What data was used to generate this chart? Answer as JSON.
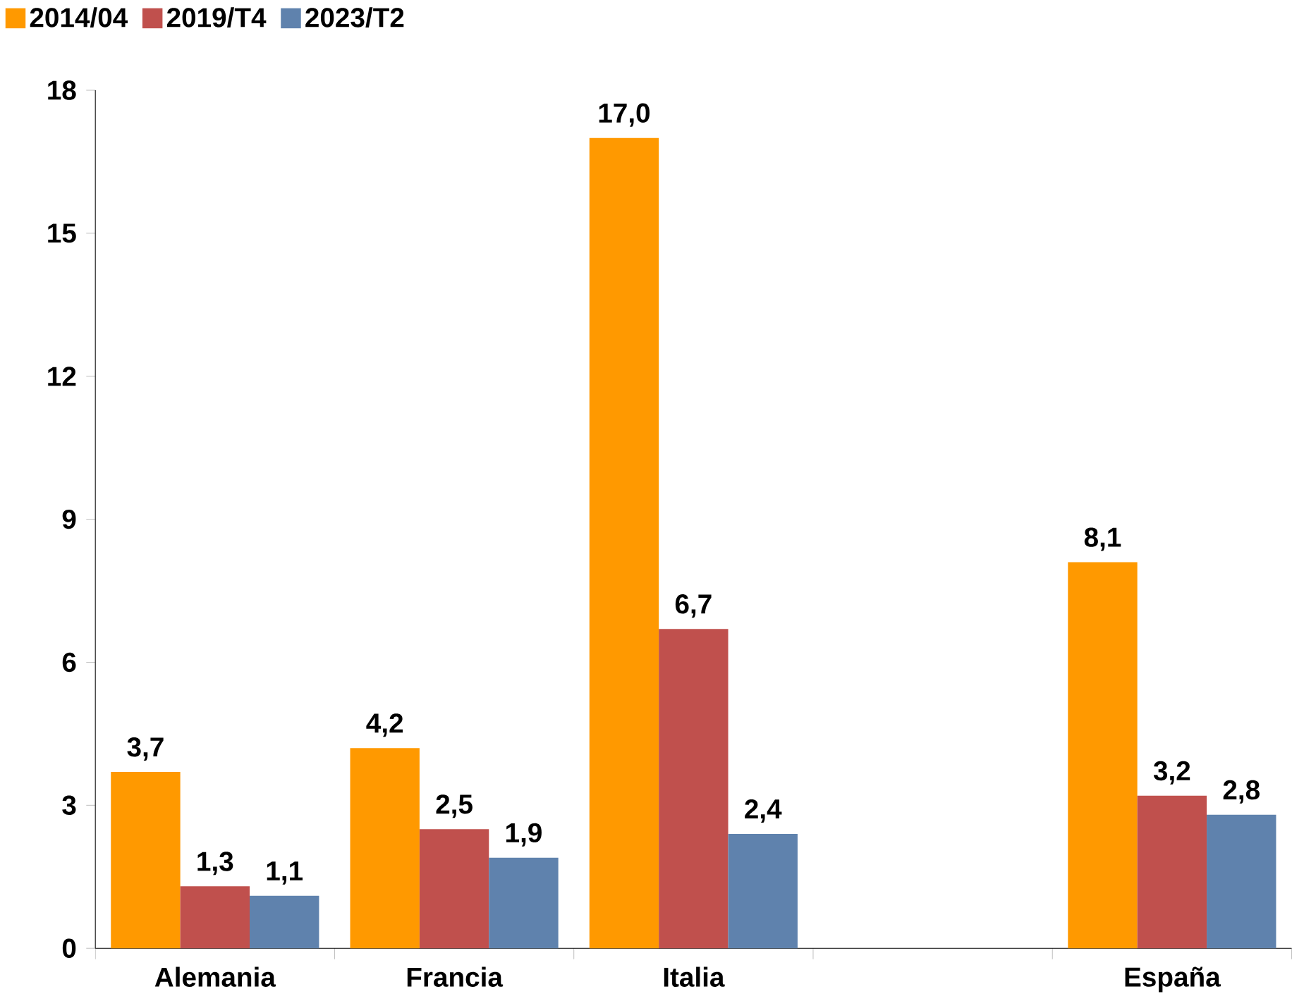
{
  "chart_data": {
    "type": "bar",
    "categories": [
      "Alemania",
      "Francia",
      "Italia",
      null,
      "España"
    ],
    "series": [
      {
        "name": "2014/04",
        "color": "#ff9900",
        "values": [
          3.7,
          4.2,
          17.0,
          null,
          8.1
        ],
        "value_labels": [
          "3,7",
          "4,2",
          "17,0",
          null,
          "8,1"
        ]
      },
      {
        "name": "2019/T4",
        "color": "#c0504d",
        "values": [
          1.3,
          2.5,
          6.7,
          null,
          3.2
        ],
        "value_labels": [
          "1,3",
          "2,5",
          "6,7",
          null,
          "3,2"
        ]
      },
      {
        "name": "2023/T2",
        "color": "#5f82ad",
        "values": [
          1.1,
          1.9,
          2.4,
          null,
          2.8
        ],
        "value_labels": [
          "1,1",
          "1,9",
          "2,4",
          null,
          "2,8"
        ]
      }
    ],
    "ylim": [
      0,
      18
    ],
    "yticks": [
      0,
      3,
      6,
      9,
      12,
      15,
      18
    ],
    "grid": false,
    "legend": "top left"
  }
}
